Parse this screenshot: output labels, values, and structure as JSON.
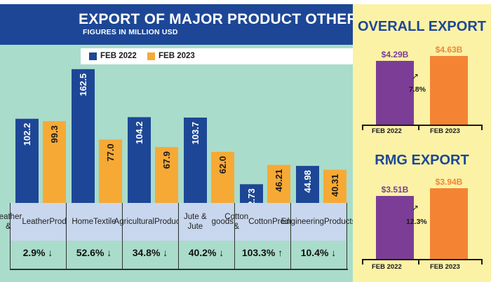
{
  "title": "EXPORT OF MAJOR PRODUCT OTHER THAN RMG",
  "subtitle": "FIGURES IN MILLION USD",
  "legend": [
    {
      "label": "FEB 2022",
      "color": "#1d4796"
    },
    {
      "label": "FEB 2023",
      "color": "#f7a935"
    }
  ],
  "colors": {
    "feb2022": "#1d4796",
    "feb2023": "#f7a935",
    "panel_2022": "#7b3d96",
    "panel_2023": "#f58334"
  },
  "chart_data": [
    {
      "type": "bar",
      "title": "EXPORT OF MAJOR PRODUCT OTHER THAN RMG",
      "subtitle": "FIGURES IN MILLION USD",
      "categories": [
        "Leather & Leather Products",
        "Home Textile",
        "Agricultural Products",
        "Jute & Jute goods",
        "Cotton & Cotton Product",
        "Engineering Products"
      ],
      "category_lines": [
        [
          "Leather &",
          "Leather",
          "Products"
        ],
        [
          "Home",
          "Textile"
        ],
        [
          "Agricultural",
          "Products"
        ],
        [
          "Jute & Jute",
          "goods"
        ],
        [
          "Cotton &",
          "Cotton",
          "Product"
        ],
        [
          "Engineering",
          "Products"
        ]
      ],
      "series": [
        {
          "name": "FEB 2022",
          "values": [
            102.2,
            162.5,
            104.2,
            103.7,
            22.73,
            44.98
          ],
          "labels": [
            "102.2",
            "162.5",
            "104.2",
            "103.7",
            "22.73",
            "44.98"
          ]
        },
        {
          "name": "FEB 2023",
          "values": [
            99.3,
            77.0,
            67.9,
            62.0,
            46.21,
            40.31
          ],
          "labels": [
            "99.3",
            "77.0",
            "67.9",
            "62.0",
            "46.21",
            "40.31"
          ]
        }
      ],
      "changes": [
        "2.9%",
        "52.6%",
        "34.8%",
        "40.2%",
        "103.3%",
        "10.4%"
      ],
      "change_direction": [
        "down",
        "down",
        "down",
        "down",
        "up",
        "down"
      ]
    },
    {
      "type": "bar",
      "title": "OVERALL EXPORT",
      "categories": [
        "FEB 2022",
        "FEB 2023"
      ],
      "values": [
        4.29,
        4.63
      ],
      "labels": [
        "$4.29B",
        "$4.63B"
      ],
      "change": "7.8%"
    },
    {
      "type": "bar",
      "title": "RMG EXPORT",
      "categories": [
        "FEB 2022",
        "FEB 2023"
      ],
      "values": [
        3.51,
        3.94
      ],
      "labels": [
        "$3.51B",
        "$3.94B"
      ],
      "change": "12.3%"
    }
  ]
}
